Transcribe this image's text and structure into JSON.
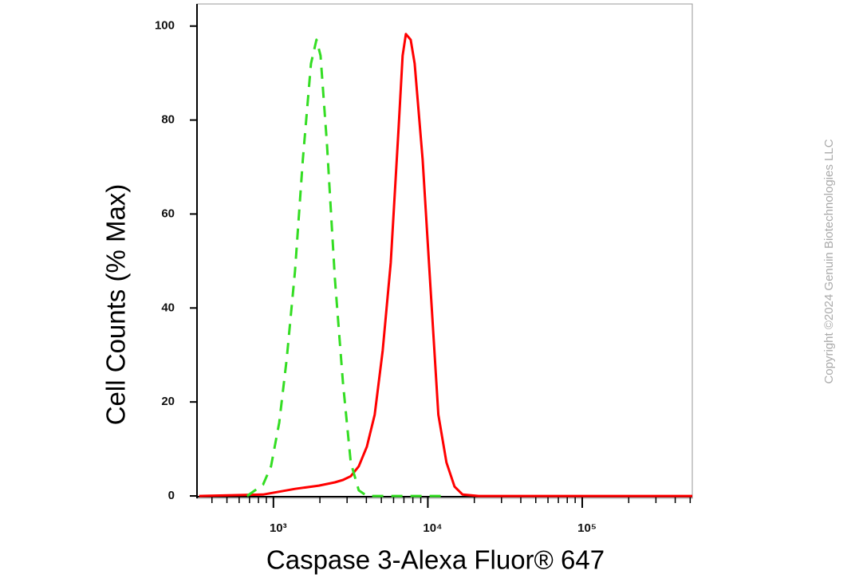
{
  "chart_data": {
    "type": "line",
    "xlabel": "Caspase 3-Alexa Fluor® 647",
    "ylabel": "Cell Counts (% Max)",
    "watermark": "Copyright ©2024 Genuin Biotechnologies LLC",
    "xscale": "log",
    "xlim": [
      320,
      516000
    ],
    "ylim": [
      -0.5,
      104.7
    ],
    "xticks": [
      {
        "value": 1000,
        "label": "10³"
      },
      {
        "value": 10000,
        "label": "10⁴"
      },
      {
        "value": 100000,
        "label": "10⁵"
      }
    ],
    "xminorticks": [
      400,
      500,
      600,
      700,
      800,
      900,
      2000,
      3000,
      4000,
      5000,
      6000,
      7000,
      8000,
      9000,
      20000,
      30000,
      40000,
      50000,
      60000,
      70000,
      80000,
      90000,
      200000,
      300000,
      400000,
      500000
    ],
    "yticks": [
      0,
      20,
      40,
      60,
      80,
      100
    ],
    "series": [
      {
        "color": "#ff0000",
        "dashed": false,
        "x": [
          330,
          857,
          1380,
          1970,
          2500,
          2820,
          3170,
          3570,
          4030,
          4530,
          5100,
          5750,
          6470,
          6870,
          7210,
          7740,
          8220,
          9250,
          10400,
          11700,
          13200,
          14900,
          16800,
          21300,
          516000
        ],
        "values": [
          0,
          0.3,
          1.5,
          2.2,
          2.9,
          3.4,
          4.2,
          6.3,
          10.5,
          17.3,
          30.9,
          49.6,
          78.4,
          93.7,
          98.3,
          97.1,
          92.0,
          71.6,
          44.5,
          17.3,
          7.1,
          2.0,
          0.3,
          0,
          0
        ]
      },
      {
        "color": "#33dd22",
        "dashed": true,
        "x": [
          675,
          857,
          965,
          1090,
          1220,
          1380,
          1550,
          1750,
          1900,
          2020,
          2220,
          2500,
          2820,
          3170,
          3570,
          4030,
          13200
        ],
        "values": [
          0,
          2.4,
          6.3,
          15.6,
          29.2,
          47.9,
          71.6,
          92.0,
          97.1,
          93.7,
          75.0,
          46.2,
          24.1,
          7.1,
          1.2,
          0,
          0
        ]
      }
    ]
  }
}
